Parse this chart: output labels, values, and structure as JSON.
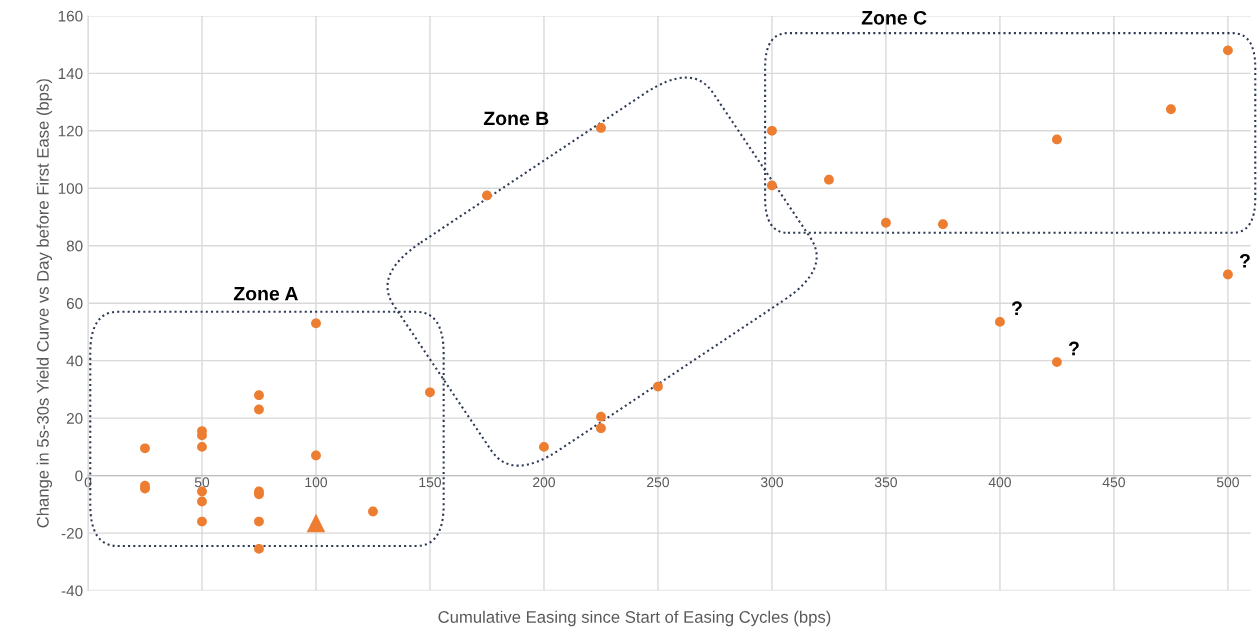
{
  "chart_data": {
    "type": "scatter",
    "xlabel": "Cumulative Easing since Start of Easing Cycles (bps)",
    "ylabel": "Change in 5s-30s Yield Curve vs Day before First Ease (bps)",
    "series": [
      {
        "color": "#ed7d31",
        "marker": "circle",
        "x": [
          25,
          25,
          25,
          50,
          50,
          50,
          50,
          50,
          50,
          75,
          75,
          75,
          75,
          75,
          75,
          100,
          100,
          125,
          150,
          175,
          200,
          225,
          225,
          225,
          250,
          300,
          300,
          325,
          350,
          375,
          425,
          475,
          500,
          400,
          425,
          500
        ],
        "values": [
          9.5,
          -3.5,
          -4.5,
          15.5,
          14,
          10,
          -5.5,
          -9,
          -16,
          28,
          23,
          -5.5,
          -6.5,
          -16,
          -25.5,
          53,
          7,
          -12.5,
          29,
          97.5,
          10,
          121,
          20.5,
          16.5,
          31,
          120,
          101,
          103,
          88,
          87.5,
          117,
          127.5,
          148,
          53.5,
          39.5,
          70
        ]
      },
      {
        "color": "#ed7d31",
        "marker": "triangle",
        "x": [
          100
        ],
        "values": [
          -16.5
        ]
      }
    ],
    "annotations": [
      "Zone A",
      "Zone B",
      "Zone C",
      {
        "text": "?",
        "x": 400,
        "y": 53.5
      },
      {
        "text": "?",
        "x": 425,
        "y": 39.5
      },
      {
        "text": "?",
        "x": 500,
        "y": 70
      }
    ],
    "xlim": [
      0,
      510
    ],
    "ylim": [
      -40,
      160
    ],
    "xticks": [
      0,
      50,
      100,
      150,
      200,
      250,
      300,
      350,
      400,
      450,
      500
    ],
    "yticks": [
      -40,
      -20,
      0,
      20,
      40,
      60,
      80,
      100,
      120,
      140,
      160
    ],
    "grid": true
  }
}
